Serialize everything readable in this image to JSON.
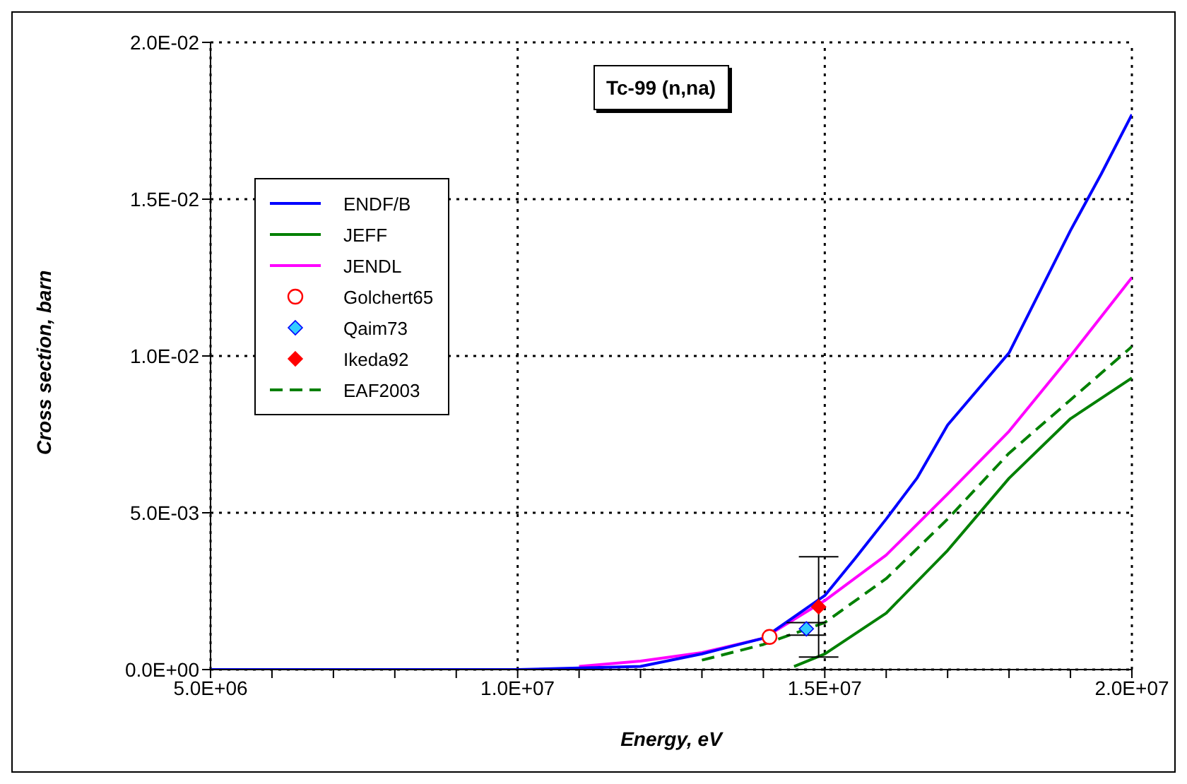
{
  "chart_data": {
    "type": "line",
    "title": "Tc-99 (n,na)",
    "xlabel": "Energy, eV",
    "ylabel": "Cross section, barn",
    "xlim": [
      5000000,
      20000000
    ],
    "xticks": [
      {
        "value": 5000000,
        "label": "5.0E+06"
      },
      {
        "value": 6000000,
        "label": null
      },
      {
        "value": 7000000,
        "label": null
      },
      {
        "value": 8000000,
        "label": null
      },
      {
        "value": 9000000,
        "label": null
      },
      {
        "value": 10000000,
        "label": "1.0E+07"
      },
      {
        "value": 11000000,
        "label": null
      },
      {
        "value": 12000000,
        "label": null
      },
      {
        "value": 13000000,
        "label": null
      },
      {
        "value": 14000000,
        "label": null
      },
      {
        "value": 15000000,
        "label": "1.5E+07"
      },
      {
        "value": 16000000,
        "label": null
      },
      {
        "value": 17000000,
        "label": null
      },
      {
        "value": 18000000,
        "label": null
      },
      {
        "value": 19000000,
        "label": null
      },
      {
        "value": 20000000,
        "label": "2.0E+07"
      }
    ],
    "ylim": [
      0,
      0.02
    ],
    "yticks": [
      {
        "value": 0,
        "label": "0.0E+00"
      },
      {
        "value": 0.005,
        "label": "5.0E-03"
      },
      {
        "value": 0.01,
        "label": "1.0E-02"
      },
      {
        "value": 0.015,
        "label": "1.5E-02"
      },
      {
        "value": 0.02,
        "label": "2.0E-02"
      }
    ],
    "grid": true,
    "legend": "top left",
    "series": [
      {
        "name": "ENDF/B",
        "color": "#0000ff",
        "marker": "none",
        "line_style": "solid",
        "x": [
          5000000,
          10000000,
          12000000,
          13000000,
          14000000,
          15000000,
          15500000,
          16000000,
          16500000,
          17000000,
          18000000,
          19000000,
          19500000,
          20000000
        ],
        "values": [
          0,
          0,
          0.0001,
          0.0005,
          0.001,
          0.00236,
          0.00356,
          0.0048,
          0.0061,
          0.0078,
          0.0101,
          0.014,
          0.0158,
          0.0177
        ]
      },
      {
        "name": "JEFF",
        "color": "#008000",
        "marker": "none",
        "line_style": "solid",
        "x": [
          14500000,
          15000000,
          16000000,
          17000000,
          18000000,
          19000000,
          20000000
        ],
        "values": [
          0.0001,
          0.0005,
          0.0018,
          0.0038,
          0.0061,
          0.008,
          0.0093
        ]
      },
      {
        "name": "JENDL",
        "color": "#ff00ff",
        "marker": "none",
        "line_style": "solid",
        "x": [
          11000000,
          12000000,
          13000000,
          14000000,
          15000000,
          16000000,
          17000000,
          18000000,
          19000000,
          20000000
        ],
        "values": [
          0.0001,
          0.00027,
          0.00054,
          0.001,
          0.0022,
          0.00365,
          0.0056,
          0.0076,
          0.01,
          0.0125
        ]
      },
      {
        "name": "Golchert65",
        "type": "scatter",
        "color": "#ff0000",
        "marker": "circle",
        "x": [
          14100000
        ],
        "values": [
          0.00104
        ]
      },
      {
        "name": "Qaim73",
        "type": "scatter",
        "color": "#33ccff",
        "marker": "diamond",
        "x": [
          14700000
        ],
        "values": [
          0.0013
        ],
        "errors": [
          0.0002
        ]
      },
      {
        "name": "Ikeda92",
        "type": "scatter",
        "color": "#ff0000",
        "marker": "diamond",
        "x": [
          14900000
        ],
        "values": [
          0.002
        ],
        "errors": [
          0.0016
        ]
      },
      {
        "name": "EAF2003",
        "color": "#008000",
        "marker": "none",
        "line_style": "dashed",
        "x": [
          13000000,
          14000000,
          15000000,
          16000000,
          17000000,
          18000000,
          19000000,
          20000000
        ],
        "values": [
          0.0003,
          0.0008,
          0.0015,
          0.0029,
          0.0048,
          0.0069,
          0.0086,
          0.0103
        ]
      }
    ]
  }
}
